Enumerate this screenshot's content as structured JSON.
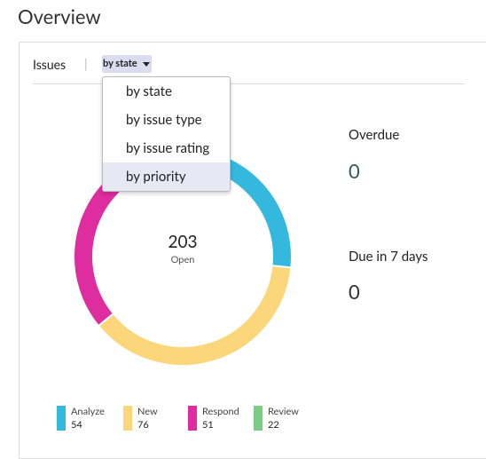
{
  "header": {
    "title": "Overview"
  },
  "card": {
    "tab": "Issues",
    "filter": {
      "selected": "by state",
      "options": [
        "by state",
        "by issue type",
        "by issue rating",
        "by priority"
      ]
    }
  },
  "chart_data": {
    "type": "donut",
    "total": 203,
    "center_label": "Open",
    "categories": [
      "Analyze",
      "New",
      "Respond",
      "Review"
    ],
    "values": [
      54,
      76,
      51,
      22
    ],
    "colors": [
      "#35b8de",
      "#fcd67a",
      "#de2d9f",
      "#7ccc85"
    ]
  },
  "stats": [
    {
      "label": "Overdue",
      "value": 0
    },
    {
      "label": "Due in 7 days",
      "value": 0
    }
  ]
}
